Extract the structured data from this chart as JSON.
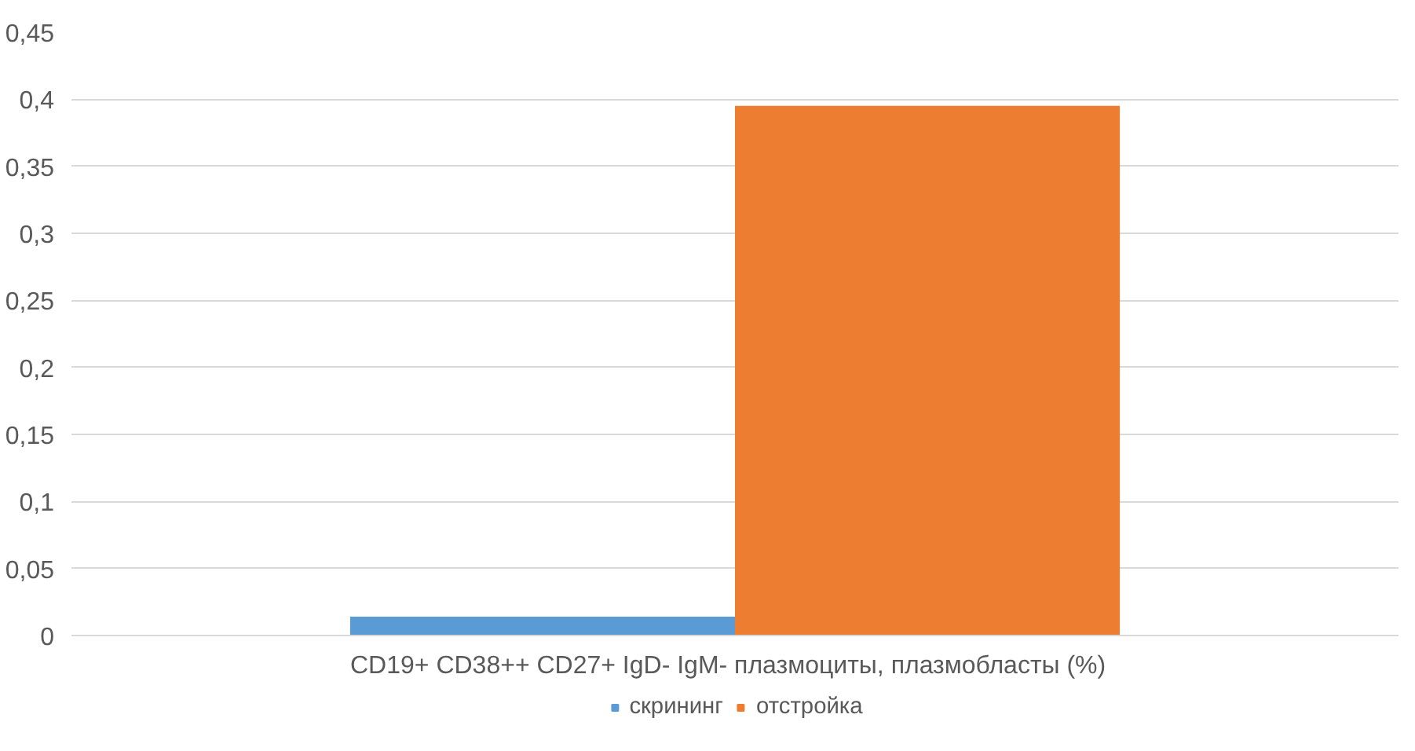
{
  "chart_data": {
    "type": "bar",
    "categories": [
      "CD19+ CD38++ CD27+ IgD- IgM-  плазмоциты, плазмобласты  (%)"
    ],
    "series": [
      {
        "name": "скрининг",
        "color": "#5b9bd5",
        "values": [
          0.014
        ]
      },
      {
        "name": "отстройка",
        "color": "#ed7d31",
        "values": [
          0.395
        ]
      }
    ],
    "ylim": [
      0,
      0.45
    ],
    "yticks": [
      {
        "value": 0,
        "label": "0"
      },
      {
        "value": 0.05,
        "label": "0,05"
      },
      {
        "value": 0.1,
        "label": "0,1"
      },
      {
        "value": 0.15,
        "label": "0,15"
      },
      {
        "value": 0.2,
        "label": "0,2"
      },
      {
        "value": 0.25,
        "label": "0,25"
      },
      {
        "value": 0.3,
        "label": "0,3"
      },
      {
        "value": 0.35,
        "label": "0,35"
      },
      {
        "value": 0.4,
        "label": "0,4"
      },
      {
        "value": 0.45,
        "label": "0,45"
      }
    ],
    "grid": "y",
    "legend": "bottom"
  }
}
